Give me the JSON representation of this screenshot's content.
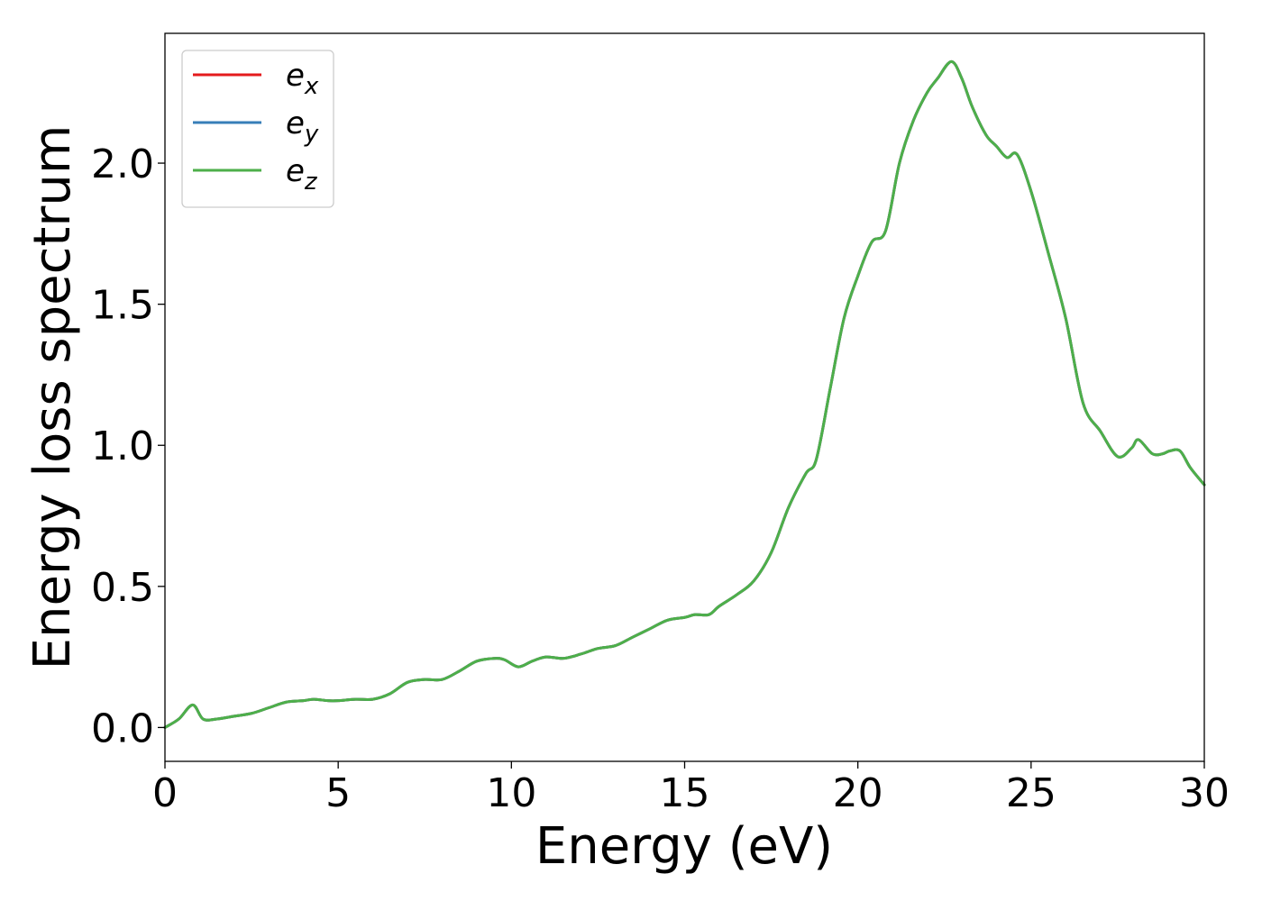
{
  "chart_data": {
    "type": "line",
    "xlabel": "Energy (eV)",
    "ylabel": "Energy loss spectrum",
    "xlim": [
      0,
      30
    ],
    "ylim": [
      -0.12,
      2.46
    ],
    "xticks": [
      0,
      5,
      10,
      15,
      20,
      25,
      30
    ],
    "xtick_labels": [
      "0",
      "5",
      "10",
      "15",
      "20",
      "25",
      "30"
    ],
    "yticks": [
      0.0,
      0.5,
      1.0,
      1.5,
      2.0
    ],
    "ytick_labels": [
      "0.0",
      "0.5",
      "1.0",
      "1.5",
      "2.0"
    ],
    "grid": false,
    "legend_position": "top-left",
    "x": [
      0,
      0.4,
      0.8,
      1.1,
      1.5,
      2.0,
      2.5,
      3.0,
      3.5,
      4.0,
      4.3,
      4.7,
      5.0,
      5.5,
      6.0,
      6.5,
      7.0,
      7.5,
      8.0,
      8.5,
      9.0,
      9.5,
      9.8,
      10.2,
      10.6,
      11.0,
      11.5,
      12.0,
      12.5,
      13.0,
      13.5,
      14.0,
      14.5,
      15.0,
      15.3,
      15.7,
      16.0,
      16.5,
      17.0,
      17.5,
      18.0,
      18.5,
      18.8,
      19.2,
      19.6,
      20.0,
      20.4,
      20.8,
      21.2,
      21.6,
      22.0,
      22.3,
      22.7,
      23.0,
      23.3,
      23.7,
      24.0,
      24.3,
      24.6,
      25.0,
      25.5,
      26.0,
      26.5,
      27.0,
      27.5,
      27.9,
      28.1,
      28.5,
      28.8,
      29.0,
      29.3,
      29.6,
      30.0
    ],
    "series": [
      {
        "name": "e_x",
        "label_base": "e",
        "label_sub": "x",
        "color": "#e41a1c",
        "values": [
          0.0,
          0.03,
          0.08,
          0.03,
          0.03,
          0.04,
          0.05,
          0.07,
          0.09,
          0.095,
          0.1,
          0.095,
          0.095,
          0.1,
          0.1,
          0.12,
          0.16,
          0.17,
          0.17,
          0.2,
          0.235,
          0.245,
          0.24,
          0.215,
          0.235,
          0.25,
          0.245,
          0.26,
          0.28,
          0.29,
          0.32,
          0.35,
          0.38,
          0.39,
          0.4,
          0.4,
          0.43,
          0.47,
          0.52,
          0.62,
          0.78,
          0.9,
          0.95,
          1.2,
          1.45,
          1.6,
          1.72,
          1.76,
          2.0,
          2.15,
          2.25,
          2.3,
          2.36,
          2.3,
          2.2,
          2.1,
          2.06,
          2.02,
          2.03,
          1.9,
          1.68,
          1.45,
          1.15,
          1.05,
          0.96,
          0.99,
          1.02,
          0.97,
          0.97,
          0.98,
          0.98,
          0.92,
          0.86
        ]
      },
      {
        "name": "e_y",
        "label_base": "e",
        "label_sub": "y",
        "color": "#377eb8",
        "values": [
          0.0,
          0.03,
          0.08,
          0.03,
          0.03,
          0.04,
          0.05,
          0.07,
          0.09,
          0.095,
          0.1,
          0.095,
          0.095,
          0.1,
          0.1,
          0.12,
          0.16,
          0.17,
          0.17,
          0.2,
          0.235,
          0.245,
          0.24,
          0.215,
          0.235,
          0.25,
          0.245,
          0.26,
          0.28,
          0.29,
          0.32,
          0.35,
          0.38,
          0.39,
          0.4,
          0.4,
          0.43,
          0.47,
          0.52,
          0.62,
          0.78,
          0.9,
          0.95,
          1.2,
          1.45,
          1.6,
          1.72,
          1.76,
          2.0,
          2.15,
          2.25,
          2.3,
          2.36,
          2.3,
          2.2,
          2.1,
          2.06,
          2.02,
          2.03,
          1.9,
          1.68,
          1.45,
          1.15,
          1.05,
          0.96,
          0.99,
          1.02,
          0.97,
          0.97,
          0.98,
          0.98,
          0.92,
          0.86
        ]
      },
      {
        "name": "e_z",
        "label_base": "e",
        "label_sub": "z",
        "color": "#4daf4a",
        "values": [
          0.0,
          0.03,
          0.08,
          0.03,
          0.03,
          0.04,
          0.05,
          0.07,
          0.09,
          0.095,
          0.1,
          0.095,
          0.095,
          0.1,
          0.1,
          0.12,
          0.16,
          0.17,
          0.17,
          0.2,
          0.235,
          0.245,
          0.24,
          0.215,
          0.235,
          0.25,
          0.245,
          0.26,
          0.28,
          0.29,
          0.32,
          0.35,
          0.38,
          0.39,
          0.4,
          0.4,
          0.43,
          0.47,
          0.52,
          0.62,
          0.78,
          0.9,
          0.95,
          1.2,
          1.45,
          1.6,
          1.72,
          1.76,
          2.0,
          2.15,
          2.25,
          2.3,
          2.36,
          2.3,
          2.2,
          2.1,
          2.06,
          2.02,
          2.03,
          1.9,
          1.68,
          1.45,
          1.15,
          1.05,
          0.96,
          0.99,
          1.02,
          0.97,
          0.97,
          0.98,
          0.98,
          0.92,
          0.86
        ]
      }
    ]
  }
}
